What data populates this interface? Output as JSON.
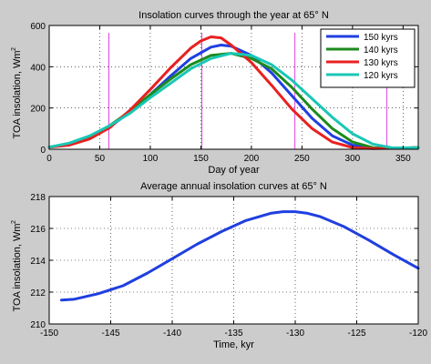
{
  "figure": {
    "background": "#cccccc",
    "axes_background": "#ffffff"
  },
  "chart_data": [
    {
      "type": "line",
      "title": "Insolation curves through the year at 65° N",
      "xlabel": "Day of year",
      "ylabel": "TOA insolation, Wm",
      "ylabel_sup": "2",
      "xlim": [
        0,
        365
      ],
      "ylim": [
        0,
        600
      ],
      "xticks": [
        0,
        50,
        100,
        150,
        200,
        250,
        300,
        350
      ],
      "yticks": [
        0,
        200,
        400,
        600
      ],
      "grid": true,
      "legend_position": "top-right",
      "vlines": {
        "x": [
          59,
          151,
          243,
          334
        ],
        "color": "#dd44dd"
      },
      "series": [
        {
          "name": "150 kyrs",
          "color": "#1f3fe0",
          "x": [
            0,
            20,
            40,
            60,
            80,
            100,
            120,
            140,
            160,
            170,
            180,
            200,
            220,
            240,
            260,
            280,
            300,
            320,
            340,
            365
          ],
          "y": [
            10,
            25,
            60,
            110,
            180,
            265,
            355,
            440,
            495,
            505,
            500,
            455,
            370,
            260,
            150,
            65,
            20,
            5,
            5,
            8
          ]
        },
        {
          "name": "140 kyrs",
          "color": "#1c8a1c",
          "x": [
            0,
            20,
            40,
            60,
            80,
            100,
            120,
            140,
            160,
            180,
            200,
            220,
            240,
            260,
            280,
            300,
            320,
            340,
            365
          ],
          "y": [
            10,
            25,
            60,
            115,
            185,
            265,
            340,
            410,
            455,
            465,
            440,
            390,
            300,
            195,
            100,
            35,
            8,
            5,
            8
          ]
        },
        {
          "name": "130 kyrs",
          "color": "#e82020",
          "x": [
            0,
            20,
            40,
            60,
            80,
            100,
            120,
            140,
            150,
            160,
            170,
            180,
            200,
            220,
            240,
            260,
            280,
            300,
            320,
            340,
            365
          ],
          "y": [
            10,
            20,
            50,
            105,
            190,
            290,
            395,
            490,
            525,
            545,
            540,
            505,
            420,
            310,
            195,
            100,
            35,
            8,
            3,
            5,
            8
          ]
        },
        {
          "name": "120 kyrs",
          "color": "#19c7b5",
          "x": [
            0,
            20,
            40,
            60,
            80,
            100,
            120,
            140,
            160,
            180,
            200,
            220,
            240,
            260,
            280,
            300,
            320,
            340,
            365
          ],
          "y": [
            10,
            30,
            65,
            115,
            175,
            250,
            320,
            390,
            440,
            465,
            455,
            410,
            335,
            245,
            155,
            75,
            25,
            6,
            8
          ]
        }
      ]
    },
    {
      "type": "line",
      "title": "Average annual insolation curves at 65° N",
      "xlabel": "Time, kyr",
      "ylabel": "TOA insolation, Wm",
      "ylabel_sup": "2",
      "xlim": [
        -150,
        -120
      ],
      "ylim": [
        210,
        218
      ],
      "xticks": [
        -150,
        -145,
        -140,
        -135,
        -130,
        -125,
        -120
      ],
      "yticks": [
        210,
        212,
        214,
        216,
        218
      ],
      "grid": true,
      "series": [
        {
          "name": "",
          "color": "#1f3fe0",
          "x": [
            -149,
            -148,
            -146,
            -144,
            -142,
            -140,
            -138,
            -136,
            -134,
            -132,
            -131,
            -130,
            -129,
            -128,
            -126,
            -124,
            -122,
            -120
          ],
          "y": [
            211.5,
            211.55,
            211.9,
            212.4,
            213.2,
            214.1,
            215.0,
            215.8,
            216.5,
            216.95,
            217.05,
            217.05,
            216.95,
            216.75,
            216.1,
            215.25,
            214.35,
            213.5
          ]
        }
      ]
    }
  ]
}
